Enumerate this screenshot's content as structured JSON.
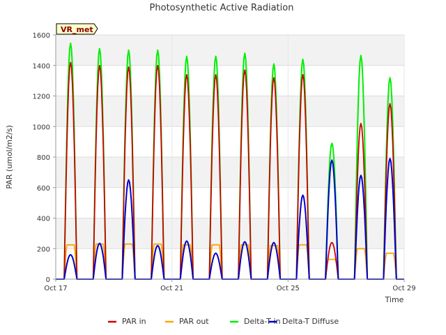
{
  "chart_data": {
    "type": "line",
    "title": "Photosynthetic Active Radiation",
    "xlabel": "Time",
    "ylabel": "PAR (umol/m2/s)",
    "badge": "VR_met",
    "xlim": [
      "2019-10-17",
      "2019-10-29"
    ],
    "ylim": [
      0,
      1600
    ],
    "yticks": [
      0,
      200,
      400,
      600,
      800,
      1000,
      1200,
      1400,
      1600
    ],
    "xticks": [
      {
        "date": "2019-10-17",
        "label": "Oct 17"
      },
      {
        "date": "2019-10-21",
        "label": "Oct 21"
      },
      {
        "date": "2019-10-25",
        "label": "Oct 25"
      },
      {
        "date": "2019-10-29",
        "label": "Oct 29"
      }
    ],
    "grid": true,
    "legend_position": "bottom",
    "days": [
      "2019-10-17",
      "2019-10-18",
      "2019-10-19",
      "2019-10-20",
      "2019-10-21",
      "2019-10-22",
      "2019-10-23",
      "2019-10-24",
      "2019-10-25",
      "2019-10-26",
      "2019-10-27",
      "2019-10-28"
    ],
    "daily_peaks": {
      "PAR in": [
        1420,
        1400,
        1390,
        1400,
        1340,
        1340,
        1370,
        1320,
        1340,
        240,
        1020,
        1150
      ],
      "PAR out": [
        225,
        230,
        230,
        230,
        225,
        225,
        225,
        220,
        225,
        130,
        200,
        170
      ],
      "Delta-T in": [
        1545,
        1510,
        1500,
        1500,
        1460,
        1460,
        1480,
        1410,
        1440,
        890,
        1465,
        1320
      ],
      "Delta-T Diffuse": [
        160,
        235,
        650,
        220,
        250,
        170,
        245,
        240,
        550,
        780,
        680,
        790
      ]
    },
    "series": [
      {
        "name": "PAR in",
        "color": "#cc0000"
      },
      {
        "name": "PAR out",
        "color": "#ffa500"
      },
      {
        "name": "Delta-T in",
        "color": "#00ee00"
      },
      {
        "name": "Delta-T Diffuse",
        "color": "#0000cc"
      }
    ]
  }
}
